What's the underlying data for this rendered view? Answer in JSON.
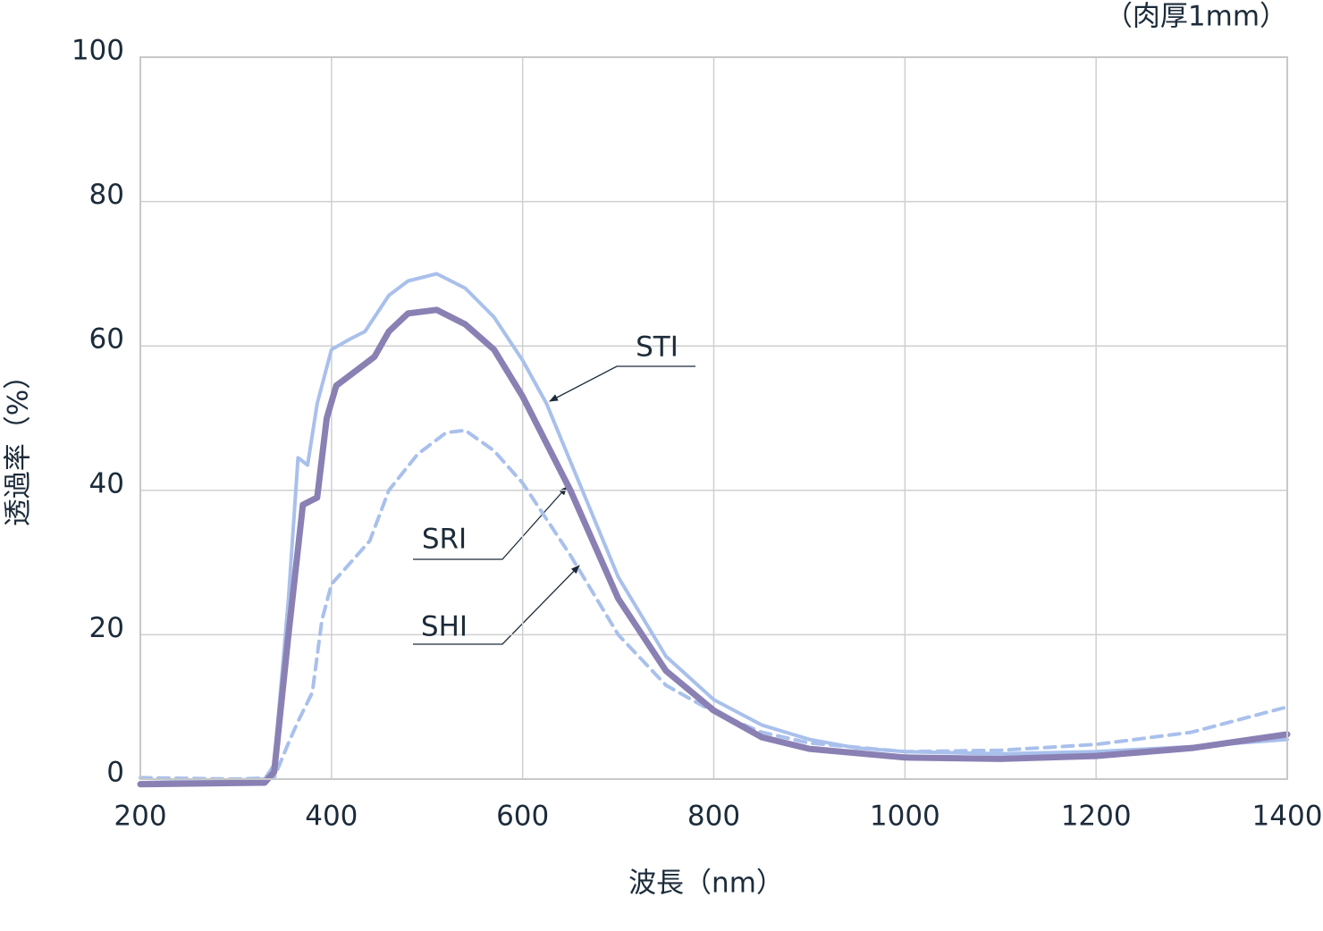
{
  "chart_data": {
    "type": "line",
    "note": "（肉厚1mm）",
    "x_label": "波長（nm）",
    "y_label": "透過率（%）",
    "xlim": [
      200,
      1400
    ],
    "xticks": [
      200,
      400,
      600,
      800,
      1000,
      1200,
      1400
    ],
    "ylim": [
      0,
      100
    ],
    "yticks": [
      0,
      20,
      40,
      60,
      80,
      100
    ],
    "grid": true,
    "series": [
      {
        "name": "STI",
        "color": "#a9c0ec",
        "dash": false,
        "x": [
          200,
          330,
          340,
          355,
          365,
          375,
          385,
          400,
          420,
          435,
          460,
          480,
          510,
          540,
          570,
          600,
          625,
          650,
          700,
          750,
          800,
          850,
          900,
          950,
          1000,
          1100,
          1200,
          1300,
          1400
        ],
        "values": [
          -0.5,
          0,
          2,
          25,
          44.5,
          43.5,
          52,
          59.5,
          61,
          62,
          67,
          69,
          70,
          68,
          64,
          58,
          52,
          44,
          28,
          17,
          11,
          7.5,
          5.5,
          4.3,
          3.8,
          3.5,
          3.8,
          4.5,
          5.5
        ]
      },
      {
        "name": "SRI",
        "color": "#8a80b3",
        "dash": false,
        "x": [
          200,
          330,
          340,
          355,
          370,
          385,
          395,
          405,
          430,
          445,
          460,
          480,
          510,
          540,
          570,
          600,
          650,
          700,
          750,
          800,
          850,
          900,
          1000,
          1100,
          1200,
          1300,
          1400
        ],
        "values": [
          -0.7,
          -0.5,
          1,
          20,
          38,
          39,
          50,
          54.5,
          57,
          58.5,
          62,
          64.5,
          65,
          63,
          59.5,
          53,
          40,
          25,
          15,
          9.5,
          5.8,
          4.2,
          3,
          2.8,
          3.2,
          4.3,
          6.2
        ]
      },
      {
        "name": "SHI",
        "color": "#a9c0ec",
        "dash": true,
        "x": [
          200,
          300,
          340,
          355,
          365,
          380,
          390,
          400,
          420,
          440,
          460,
          490,
          520,
          540,
          570,
          600,
          650,
          700,
          750,
          800,
          850,
          900,
          1000,
          1100,
          1200,
          1300,
          1400
        ],
        "values": [
          0.2,
          0,
          0.2,
          5,
          8,
          12,
          22,
          27,
          30,
          33,
          40,
          45,
          48,
          48.3,
          45.5,
          41,
          31,
          20,
          13,
          9.3,
          6.5,
          5,
          3.8,
          4,
          4.8,
          6.5,
          10
        ]
      }
    ]
  }
}
